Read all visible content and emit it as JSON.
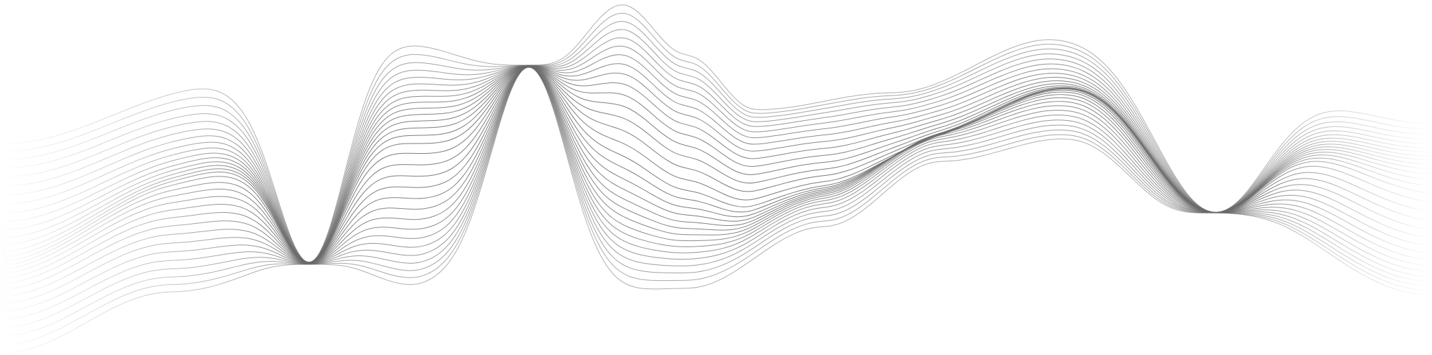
{
  "artwork": {
    "subject": "abstract-wave-lines",
    "background_color": "#ffffff",
    "line_color": "#6b6b6b",
    "line_count": 30,
    "fade_direction": "both-ends"
  }
}
